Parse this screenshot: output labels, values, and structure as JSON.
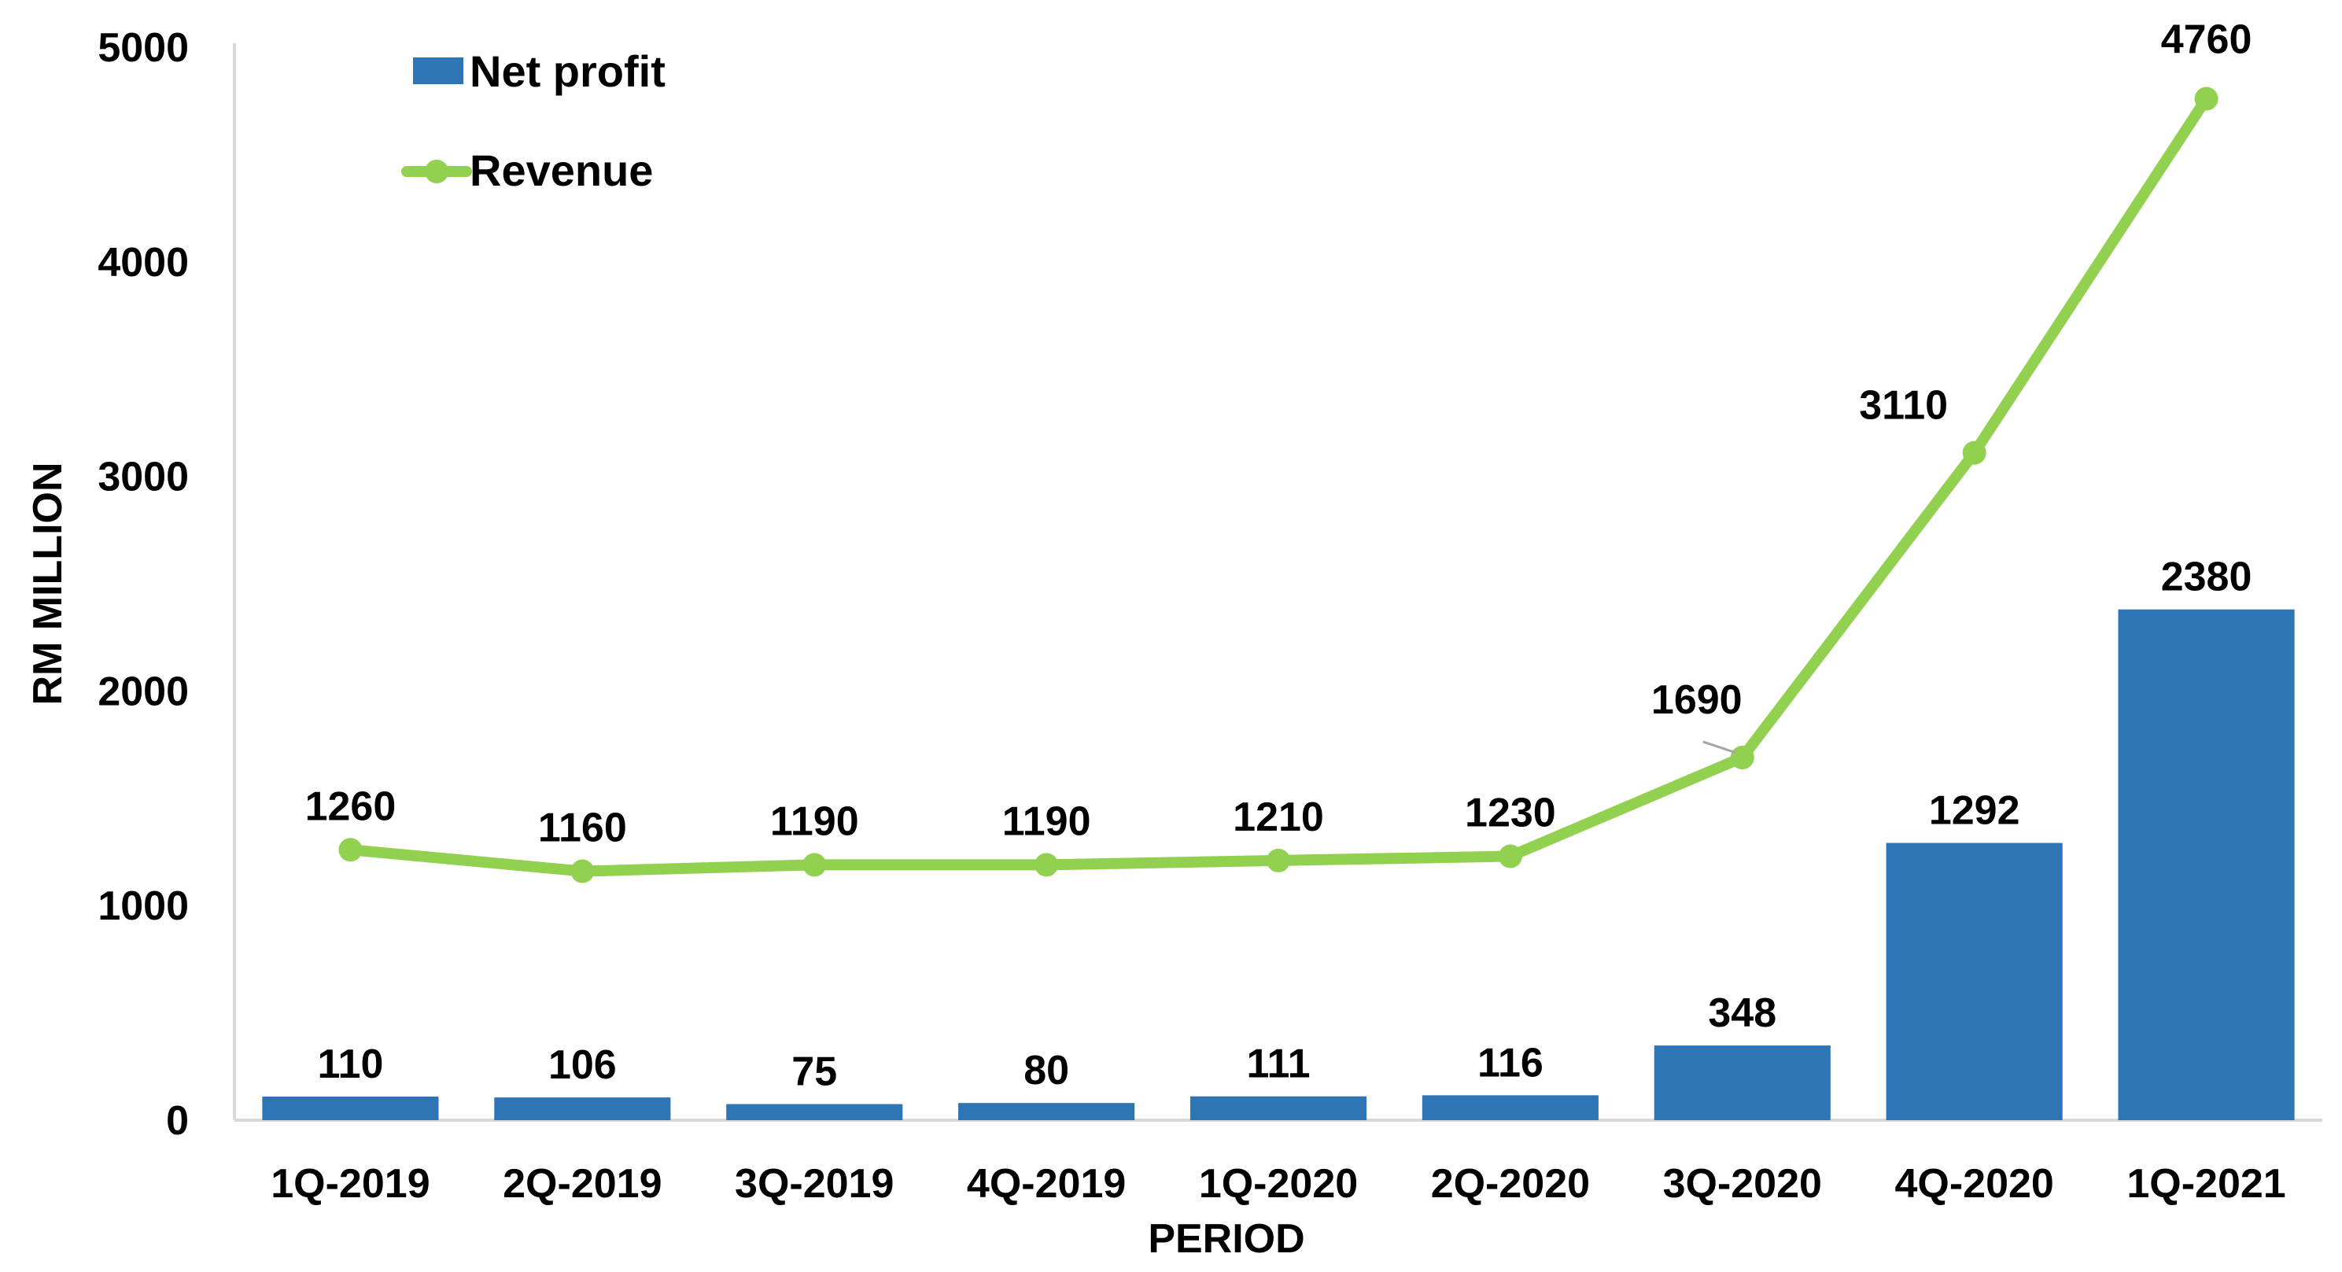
{
  "chart_data": {
    "type": "bar+line",
    "title": "",
    "xlabel": "PERIOD",
    "ylabel": "RM MILLION",
    "ylim": [
      0,
      5000
    ],
    "yticks": [
      0,
      1000,
      2000,
      3000,
      4000,
      5000
    ],
    "categories": [
      "1Q-2019",
      "2Q-2019",
      "3Q-2019",
      "4Q-2019",
      "1Q-2020",
      "2Q-2020",
      "3Q-2020",
      "4Q-2020",
      "1Q-2021"
    ],
    "series": [
      {
        "name": "Net profit",
        "type": "bar",
        "color": "#2E75B6",
        "values": [
          110,
          106,
          75,
          80,
          111,
          116,
          348,
          1292,
          2380
        ]
      },
      {
        "name": "Revenue",
        "type": "line",
        "color": "#92D050",
        "values": [
          1260,
          1160,
          1190,
          1190,
          1210,
          1230,
          1690,
          3110,
          4760
        ]
      }
    ],
    "legend_position": "top-left",
    "grid": false
  }
}
